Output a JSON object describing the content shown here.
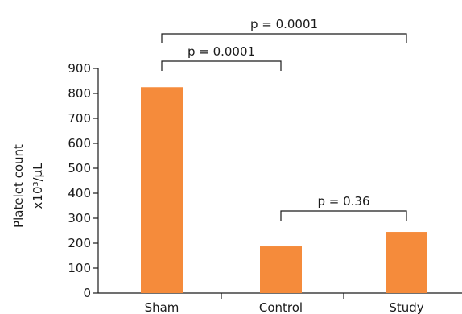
{
  "chart_data": {
    "type": "bar",
    "categories": [
      "Sham",
      "Control",
      "Study"
    ],
    "values": [
      825,
      187,
      245
    ],
    "ylabel_lines": [
      "Platelet count",
      "x10³/μL"
    ],
    "ylim": [
      0,
      900
    ],
    "yticks": [
      0,
      100,
      200,
      300,
      400,
      500,
      600,
      700,
      800,
      900
    ],
    "bar_color": "#F58B3B",
    "grid": false,
    "annotations": [
      {
        "from": 0,
        "to": 2,
        "label": "p = 0.0001"
      },
      {
        "from": 0,
        "to": 1,
        "label": "p = 0.0001"
      },
      {
        "from": 1,
        "to": 2,
        "label": "p = 0.36"
      }
    ]
  }
}
